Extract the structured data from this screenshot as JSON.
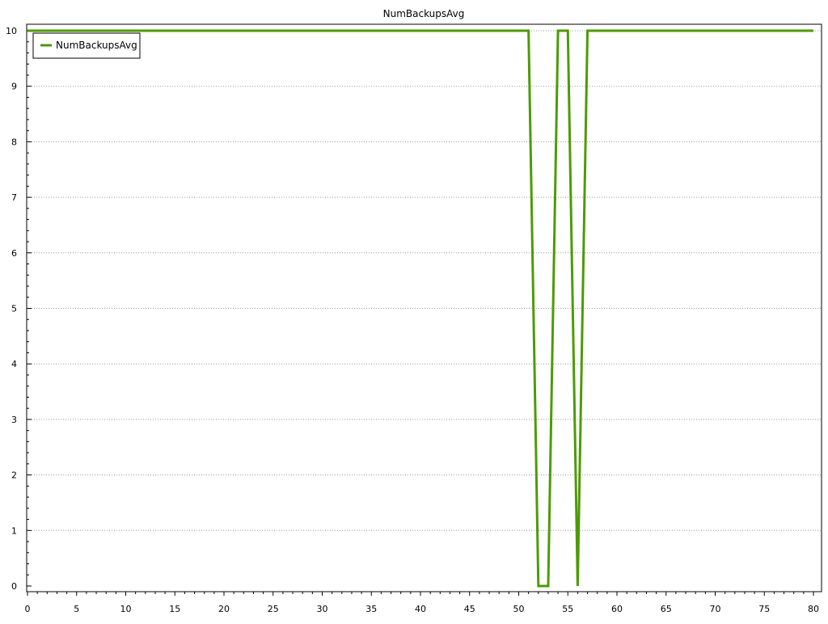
{
  "chart_data": {
    "type": "line",
    "title": "NumBackupsAvg",
    "xlabel": "",
    "ylabel": "",
    "xlim": [
      0,
      80
    ],
    "ylim": [
      0,
      10
    ],
    "x_major_ticks": [
      0,
      5,
      10,
      15,
      20,
      25,
      30,
      35,
      40,
      45,
      50,
      55,
      60,
      65,
      70,
      75,
      80
    ],
    "x_tick_labels": [
      "0",
      "5",
      "10",
      "15",
      "20",
      "25",
      "30",
      "35",
      "40",
      "45",
      "50",
      "55",
      "60",
      "65",
      "70",
      "75",
      "80"
    ],
    "y_major_ticks": [
      0,
      1,
      2,
      3,
      4,
      5,
      6,
      7,
      8,
      9,
      10
    ],
    "y_tick_labels": [
      "0",
      "1",
      "2",
      "3",
      "4",
      "5",
      "6",
      "7",
      "8",
      "9",
      "10"
    ],
    "grid": "horizontal dotted",
    "legend": {
      "position": "top-left",
      "entries": [
        "NumBackupsAvg"
      ]
    },
    "series": [
      {
        "name": "NumBackupsAvg",
        "color": "#4e9a06",
        "x": [
          0,
          51,
          52,
          53,
          54,
          55,
          56,
          57,
          80
        ],
        "y": [
          10,
          10,
          0,
          0,
          10,
          10,
          0,
          10,
          10
        ]
      }
    ]
  }
}
